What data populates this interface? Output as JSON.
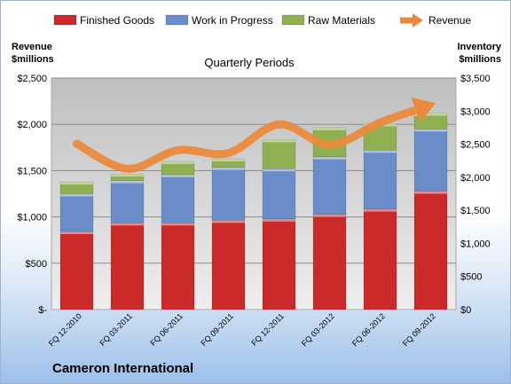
{
  "chart_data": {
    "type": "bar",
    "title": "Quarterly Periods",
    "company": "Cameron International",
    "categories": [
      "FQ 12-2010",
      "FQ 03-2011",
      "FQ 06-2011",
      "FQ 09-2011",
      "FQ 12-2011",
      "FQ 03-2012",
      "FQ 06-2012",
      "FQ 09-2012"
    ],
    "series": [
      {
        "name": "Finished Goods",
        "color": "#cc2a2a",
        "values": [
          1180,
          1310,
          1310,
          1350,
          1370,
          1440,
          1520,
          1790
        ]
      },
      {
        "name": "Work in Progress",
        "color": "#6a8cc8",
        "values": [
          570,
          640,
          730,
          800,
          760,
          870,
          890,
          940
        ]
      },
      {
        "name": "Raw Materials",
        "color": "#8fb050",
        "values": [
          180,
          100,
          200,
          130,
          440,
          440,
          400,
          240
        ]
      }
    ],
    "line_series": {
      "name": "Revenue",
      "color": "#ea8a3c",
      "values": [
        1790,
        1520,
        1720,
        1690,
        2000,
        1780,
        2020,
        2210
      ]
    },
    "left_axis": {
      "label": "Revenue $millions",
      "ylim": [
        0,
        2500
      ],
      "ticks": [
        "$-",
        "$500",
        "$1,000",
        "$1,500",
        "$2,000",
        "$2,500"
      ]
    },
    "right_axis": {
      "label": "Inventory $millions",
      "ylim": [
        0,
        3500
      ],
      "ticks": [
        "$0",
        "$500",
        "$1,000",
        "$1,500",
        "$2,000",
        "$2,500",
        "$3,000",
        "$3,500"
      ]
    },
    "grid": true,
    "legend_position": "top",
    "plot_background": "#c0c0c0"
  }
}
